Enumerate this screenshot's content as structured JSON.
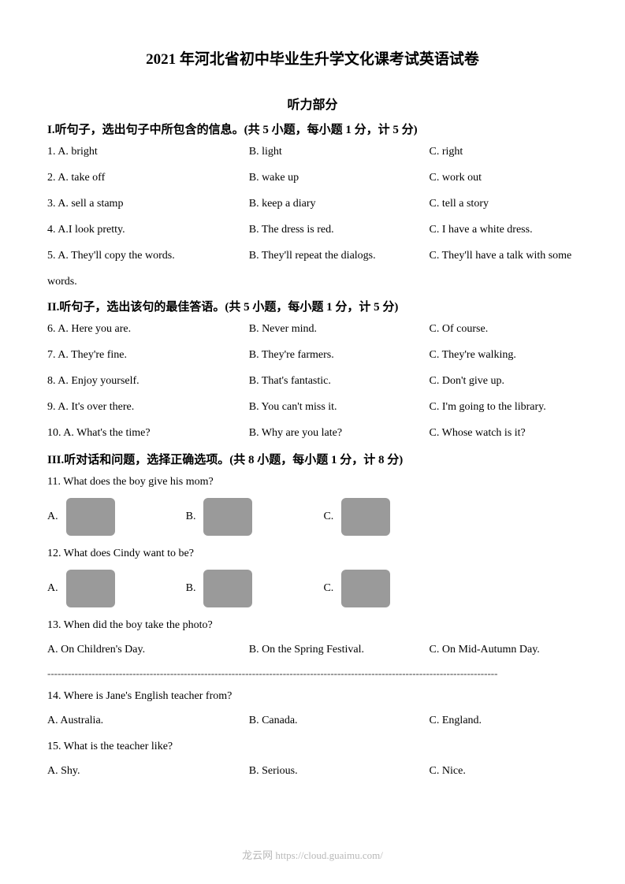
{
  "title": "2021 年河北省初中毕业生升学文化课考试英语试卷",
  "listening_title": "听力部分",
  "section1": {
    "heading": "I.听句子，选出句子中所包含的信息。(共 5 小题，每小题 1 分，计 5 分)",
    "questions": [
      {
        "num": "1.",
        "a": "A. bright",
        "b": "B. light",
        "c": "C. right"
      },
      {
        "num": "2.",
        "a": "A. take off",
        "b": "B. wake up",
        "c": "C. work out"
      },
      {
        "num": "3.",
        "a": "A. sell a stamp",
        "b": "B. keep a diary",
        "c": "C. tell a story"
      },
      {
        "num": "4.",
        "a": "A.I look pretty.",
        "b": "B. The dress is red.",
        "c": "C. I have a white dress."
      },
      {
        "num": "5.",
        "a": "A. They'll copy the words.",
        "b": "B. They'll repeat the dialogs.",
        "c": "C. They'll have a talk with some"
      }
    ],
    "q5_continuation": "words."
  },
  "section2": {
    "heading": "II.听句子，选出该句的最佳答语。(共 5 小题，每小题 1 分，计 5 分)",
    "questions": [
      {
        "num": "6.",
        "a": "A. Here you are.",
        "b": "B. Never mind.",
        "c": "C. Of course."
      },
      {
        "num": "7.",
        "a": "A. They're fine.",
        "b": "B. They're farmers.",
        "c": "C. They're walking."
      },
      {
        "num": "8.",
        "a": "A. Enjoy yourself.",
        "b": "B. That's fantastic.",
        "c": "C. Don't give up."
      },
      {
        "num": "9.",
        "a": "A. It's over there.",
        "b": "B. You can't miss it.",
        "c": "C. I'm going to the library."
      },
      {
        "num": "10.",
        "a": "A. What's the time?",
        "b": "B. Why are you late?",
        "c": "C. Whose watch is it?"
      }
    ]
  },
  "section3": {
    "heading": "III.听对话和问题，选择正确选项。(共 8 小题，每小题 1 分，计 8 分)",
    "q11": "11. What does the boy give his mom?",
    "q12": "12. What does Cindy want to be?",
    "q13": {
      "text": "13. When did the boy take the photo?",
      "a": "A. On Children's Day.",
      "b": "B. On the Spring Festival.",
      "c": "C. On Mid-Autumn Day."
    },
    "q14": {
      "text": "14. Where is Jane's English teacher from?",
      "a": "A. Australia.",
      "b": "B. Canada.",
      "c": "C. England."
    },
    "q15": {
      "text": "15. What is the teacher like?",
      "a": "A. Shy.",
      "b": "B. Serious.",
      "c": "C. Nice."
    },
    "image_letters": {
      "a": "A.",
      "b": "B.",
      "c": "C."
    }
  },
  "divider": "------------------------------------------------------------------------------------------------------------------------------------",
  "footer": "龙云网 https://cloud.guaimu.com/",
  "colors": {
    "background": "#ffffff",
    "text": "#000000",
    "footer_text": "#b8b8b8",
    "image_placeholder": "#9a9a9a"
  },
  "typography": {
    "body_fontsize": 14,
    "title_fontsize": 19,
    "subtitle_fontsize": 16,
    "heading_fontsize": 15
  }
}
